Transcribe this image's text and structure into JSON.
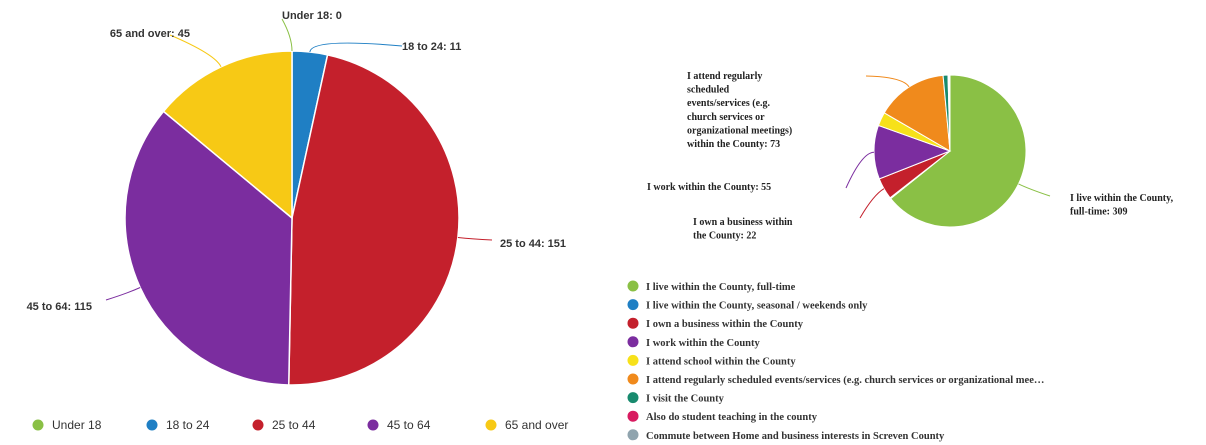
{
  "chart_data": [
    {
      "type": "pie",
      "title": "",
      "legend": "bottom",
      "categories": [
        "Under 18",
        "18 to 24",
        "25 to 44",
        "45 to 64",
        "65 and over"
      ],
      "values": [
        0,
        11,
        151,
        115,
        45
      ],
      "colors": [
        "#8ac045",
        "#1f7fc4",
        "#c4202c",
        "#7b2d9f",
        "#f7c915"
      ],
      "slice_labels": [
        "Under 18: 0",
        "18 to 24: 11",
        "25 to 44: 151",
        "45 to 64: 115",
        "65 and over: 45"
      ],
      "legend_labels": [
        "Under 18",
        "18 to 24",
        "25 to 44",
        "45 to 64",
        "65 and over"
      ]
    },
    {
      "type": "pie",
      "title": "",
      "legend": "bottom",
      "categories": [
        "I live within the County, full-time",
        "I live within the County, seasonal / weekends only",
        "I own a business within the County",
        "I work within the County",
        "I attend school within the County",
        "I attend regularly scheduled events/services (e.g. church services or organizational mee…",
        "I visit the County",
        "Also do student teaching in the county",
        "Commute between Home and business interests in Screven County"
      ],
      "values": [
        309,
        1,
        22,
        55,
        14,
        73,
        5,
        1,
        1
      ],
      "colors": [
        "#8ac045",
        "#1f7fc4",
        "#c4202c",
        "#7b2d9f",
        "#f7e11a",
        "#f08a1c",
        "#188a6e",
        "#d81b60",
        "#90a4ae"
      ],
      "slice_labels": [
        "I live within the County,\nfull-time: 309",
        "",
        "I own a business within\nthe County: 22",
        "I work within the County: 55",
        "",
        "I attend regularly\nscheduled\nevents/services (e.g.\nchurch services or\norganizational meetings)\nwithin the County: 73",
        "",
        "",
        ""
      ],
      "legend_labels": [
        "I live within the County, full-time",
        "I live within the County, seasonal / weekends only",
        "I own a business within the County",
        "I work within the County",
        "I attend school within the County",
        "I attend regularly scheduled events/services (e.g. church services or organizational mee…",
        "I visit the County",
        "Also do student teaching in the county",
        "Commute between Home and business interests in Screven County"
      ]
    }
  ]
}
